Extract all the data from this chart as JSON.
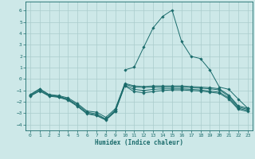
{
  "bg_color": "#cde8e8",
  "grid_color": "#aacccc",
  "line_color": "#1a6b6b",
  "xlabel": "Humidex (Indice chaleur)",
  "xlim": [
    -0.5,
    23.5
  ],
  "ylim": [
    -4.5,
    6.8
  ],
  "xticks": [
    0,
    1,
    2,
    3,
    4,
    5,
    6,
    7,
    8,
    9,
    10,
    11,
    12,
    13,
    14,
    15,
    16,
    17,
    18,
    19,
    20,
    21,
    22,
    23
  ],
  "yticks": [
    -4,
    -3,
    -2,
    -1,
    0,
    1,
    2,
    3,
    4,
    5,
    6
  ],
  "series": [
    {
      "x": [
        0,
        1,
        2,
        3,
        4,
        5,
        6,
        7,
        8,
        9,
        10,
        11,
        12,
        13,
        14,
        15,
        16,
        17,
        18,
        19,
        20,
        21,
        22,
        23
      ],
      "y": [
        -1.4,
        -0.9,
        -1.4,
        -1.5,
        -1.75,
        -2.25,
        -2.9,
        -3.05,
        -3.5,
        -2.7,
        -0.45,
        -0.7,
        -0.75,
        -0.7,
        -0.7,
        -0.7,
        -0.7,
        -0.75,
        -0.8,
        -0.85,
        -0.95,
        -1.5,
        -2.45,
        -2.65
      ]
    },
    {
      "x": [
        0,
        1,
        2,
        3,
        4,
        5,
        6,
        7,
        8,
        9,
        10,
        11,
        12,
        13,
        14,
        15,
        16,
        17,
        18,
        19,
        20,
        21,
        22,
        23
      ],
      "y": [
        -1.45,
        -1.0,
        -1.45,
        -1.55,
        -1.8,
        -2.35,
        -3.0,
        -3.15,
        -3.55,
        -2.8,
        -0.55,
        -0.9,
        -1.0,
        -0.9,
        -0.85,
        -0.85,
        -0.85,
        -0.9,
        -0.95,
        -1.05,
        -1.15,
        -1.65,
        -2.55,
        -2.75
      ]
    },
    {
      "x": [
        0,
        1,
        2,
        3,
        4,
        5,
        6,
        7,
        8,
        9,
        10,
        11,
        12,
        13,
        14,
        15,
        16,
        17,
        18,
        19,
        20,
        21,
        22,
        23
      ],
      "y": [
        -1.5,
        -1.05,
        -1.5,
        -1.6,
        -1.85,
        -2.4,
        -3.05,
        -3.2,
        -3.6,
        -2.85,
        -0.6,
        -1.1,
        -1.2,
        -1.1,
        -1.0,
        -0.95,
        -0.95,
        -1.0,
        -1.05,
        -1.15,
        -1.25,
        -1.75,
        -2.65,
        -2.85
      ]
    },
    {
      "x": [
        0,
        1,
        2,
        3,
        4,
        5,
        6,
        7,
        8,
        9,
        10,
        11,
        12,
        13,
        14,
        15,
        16,
        17,
        18,
        19,
        20,
        21,
        22,
        23
      ],
      "y": [
        -1.35,
        -0.85,
        -1.35,
        -1.45,
        -1.65,
        -2.15,
        -2.8,
        -2.9,
        -3.35,
        -2.6,
        -0.38,
        -0.6,
        -0.65,
        -0.6,
        -0.6,
        -0.6,
        -0.6,
        -0.65,
        -0.7,
        -0.75,
        -0.85,
        -1.4,
        -2.35,
        -2.55
      ]
    },
    {
      "x": [
        10,
        11,
        12,
        13,
        14,
        15,
        16,
        17,
        18,
        19,
        20,
        21,
        22,
        23
      ],
      "y": [
        0.8,
        1.05,
        2.8,
        4.5,
        5.5,
        6.05,
        3.3,
        2.0,
        1.8,
        0.8,
        -0.7,
        -0.9,
        -1.75,
        -2.55
      ]
    }
  ]
}
